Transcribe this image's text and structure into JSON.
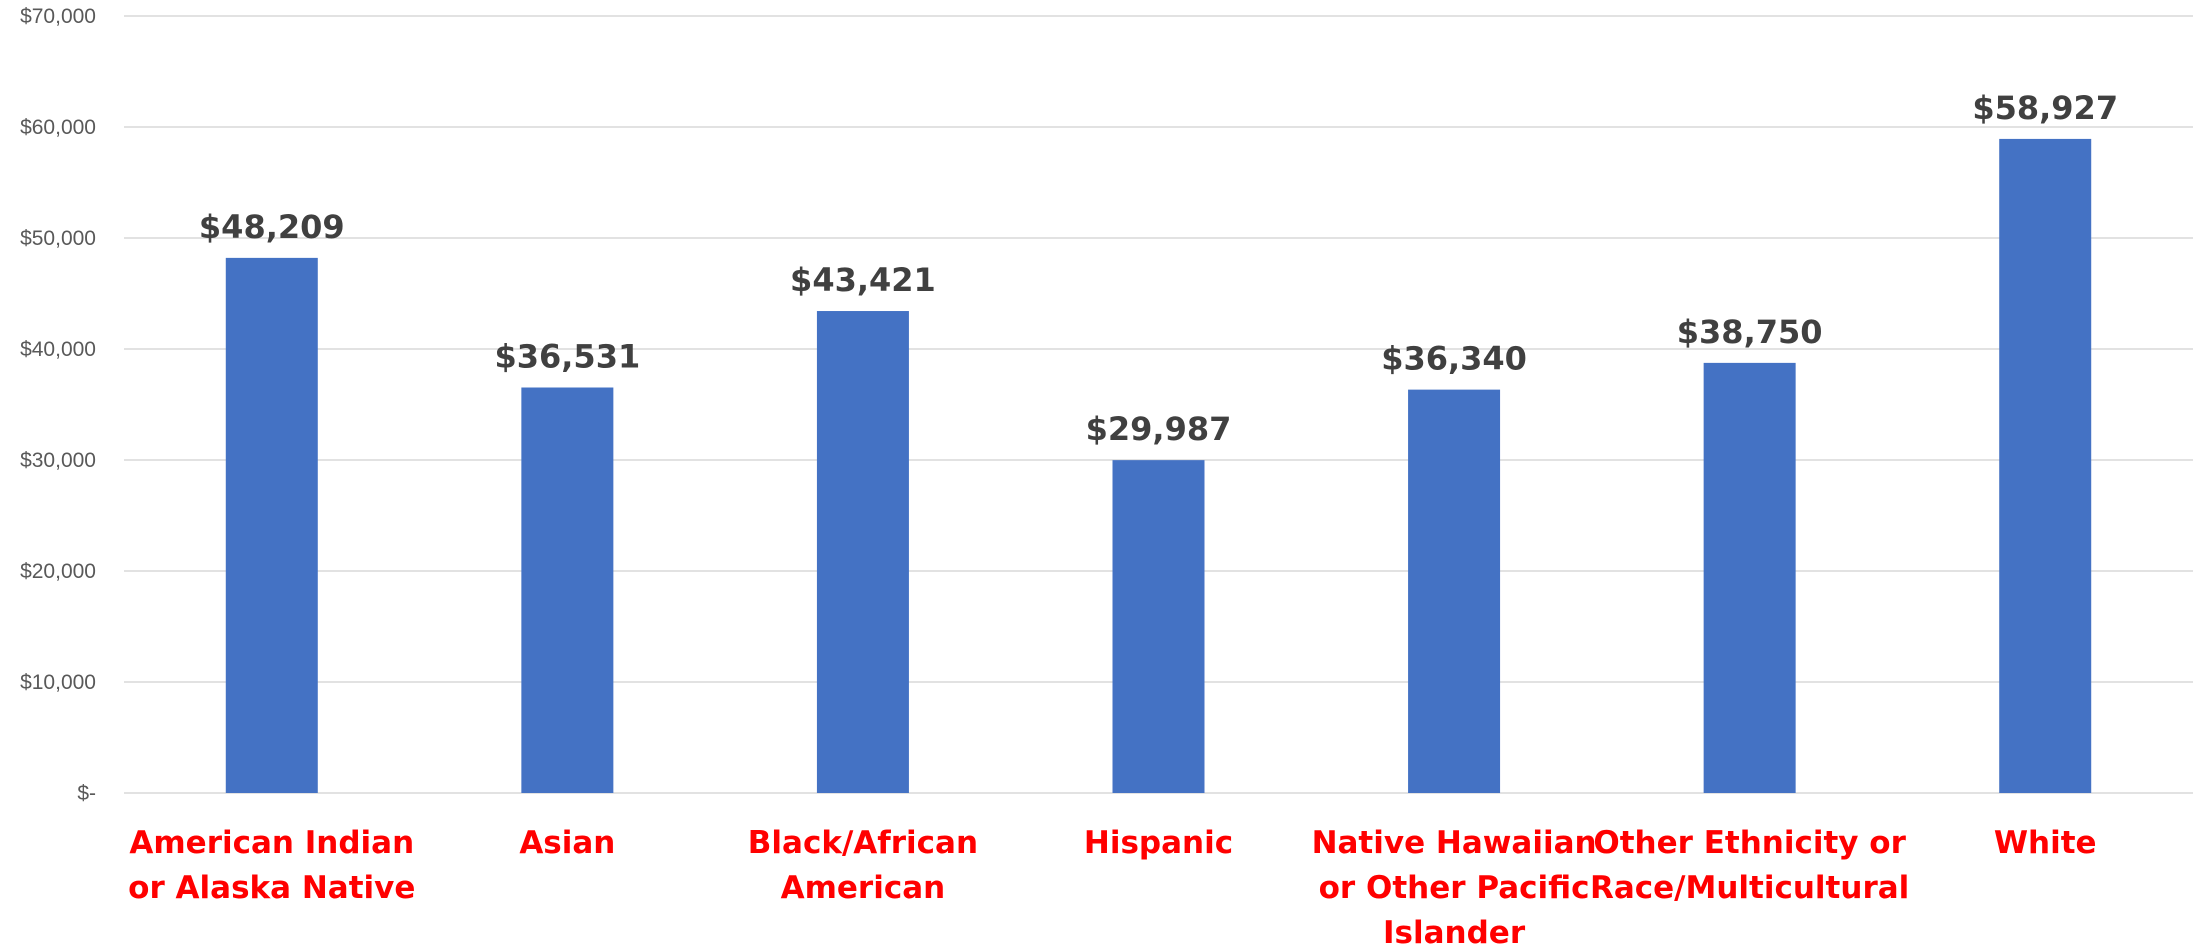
{
  "chart_data": {
    "type": "bar",
    "categories": [
      [
        "American Indian",
        "or Alaska Native"
      ],
      [
        "Asian"
      ],
      [
        "Black/African",
        "American"
      ],
      [
        "Hispanic"
      ],
      [
        "Native Hawaiian",
        "or Other Pacific",
        "Islander"
      ],
      [
        "Other Ethnicity or",
        "Race/Multicultural"
      ],
      [
        "White"
      ]
    ],
    "values": [
      48209,
      36531,
      43421,
      29987,
      36340,
      38750,
      58927
    ],
    "data_labels": [
      "$48,209",
      "$36,531",
      "$43,421",
      "$29,987",
      "$36,340",
      "$38,750",
      "$58,927"
    ],
    "y_ticks": [
      0,
      10000,
      20000,
      30000,
      40000,
      50000,
      60000,
      70000
    ],
    "y_tick_labels": [
      "$-",
      "$10,000",
      "$20,000",
      "$30,000",
      "$40,000",
      "$50,000",
      "$60,000",
      "$70,000"
    ],
    "ylim": [
      0,
      70000
    ],
    "title": "",
    "xlabel": "",
    "ylabel": "",
    "grid": true,
    "legend": "none",
    "colors": {
      "bar": "#4472c4",
      "category_label": "#ff0000",
      "data_label": "#404040",
      "tick_label": "#595959",
      "gridline": "#d9d9d9"
    }
  }
}
